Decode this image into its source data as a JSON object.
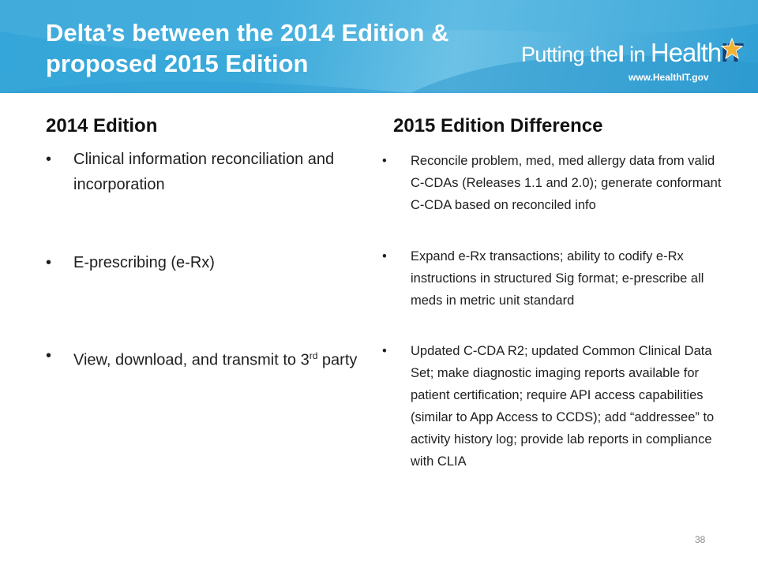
{
  "header": {
    "title_line1": "Delta’s between the 2014 Edition &",
    "title_line2": "proposed 2015 Edition",
    "logo": {
      "putting": "Putting the",
      "i": "I",
      "in": " in ",
      "health": "Health",
      "it": "IT",
      "url": "www.HealthIT.gov"
    }
  },
  "left": {
    "heading": "2014 Edition",
    "items": [
      {
        "bullet": "•",
        "text": "Clinical information reconciliation and incorporation"
      },
      {
        "bullet": "•",
        "text": "E-prescribing (e-Rx)"
      },
      {
        "bullet": "•",
        "text_main": "View, download, and transmit to 3",
        "sup": "rd",
        "text_tail": " party"
      }
    ]
  },
  "right": {
    "heading": "2015 Edition Difference",
    "items": [
      {
        "bullet": "•",
        "text": "Reconcile problem, med, med allergy data from valid C-CDAs (Releases 1.1 and 2.0); generate conformant C-CDA based on reconciled info"
      },
      {
        "bullet": "•",
        "text": "Expand e-Rx transactions; ability to codify e-Rx instructions in structured Sig format; e-prescribe all meds in metric unit standard"
      },
      {
        "bullet": "•",
        "text": "Updated C-CDA R2; updated Common Clinical Data Set; make diagnostic imaging reports available for patient certification; require API access capabilities (similar to App Access to CCDS); add “addressee” to activity history log; provide lab reports in compliance with CLIA"
      }
    ]
  },
  "footer": {
    "page_number": "38"
  },
  "colors": {
    "header_blue": "#35a6d9",
    "it_navy": "#1d3b6f",
    "star_gold": "#f2b233"
  }
}
